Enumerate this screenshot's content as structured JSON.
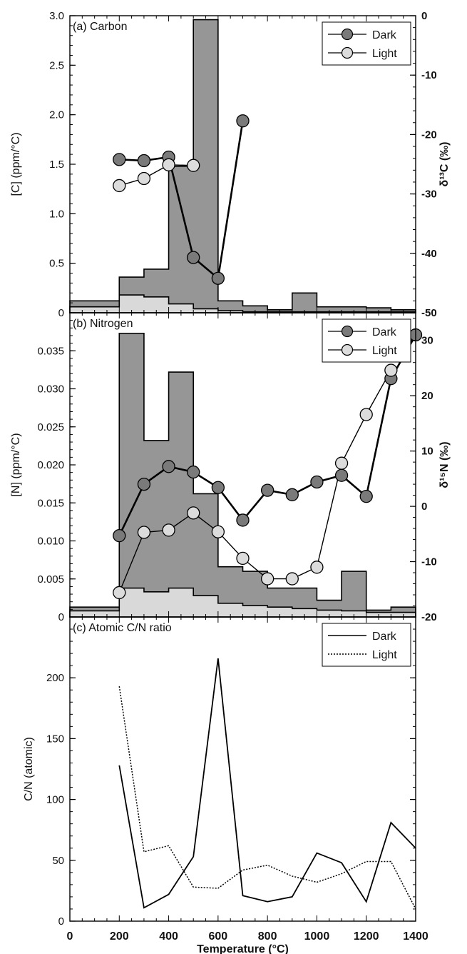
{
  "chart_data": [
    {
      "type": "bar",
      "panel_label": "(a) Carbon",
      "ylabel": "[C] (ppm/°C)",
      "y2label_html": "δ¹³C (‰)",
      "ylim": [
        0,
        3.0
      ],
      "yticks": [
        "0",
        "0.5",
        "1.0",
        "1.5",
        "2.0",
        "2.5",
        "3.0"
      ],
      "y2lim": [
        -50,
        0
      ],
      "y2ticks": [
        "-50",
        "-40",
        "-30",
        "-20",
        "-10",
        "0"
      ],
      "xlim": [
        0,
        1400
      ],
      "bins": [
        0,
        200,
        300,
        400,
        500,
        600,
        700,
        800,
        900,
        1000,
        1100,
        1200,
        1300,
        1400
      ],
      "bar_series": [
        {
          "name": "Dark",
          "values": [
            0.12,
            0.36,
            0.44,
            1.48,
            2.96,
            0.12,
            0.07,
            0.03,
            0.2,
            0.06,
            0.06,
            0.05,
            0.03
          ]
        },
        {
          "name": "Light",
          "values": [
            0.06,
            0.18,
            0.16,
            0.09,
            0.04,
            0.02,
            0.01,
            0.01,
            0.01,
            0.01,
            0.01,
            0.01,
            0.01
          ]
        }
      ],
      "line_series": [
        {
          "name": "Dark",
          "x": [
            200,
            300,
            400,
            500,
            600,
            700
          ],
          "y": [
            -24.2,
            -24.4,
            -23.8,
            -40.7,
            -44.2,
            -17.7
          ]
        },
        {
          "name": "Light",
          "x": [
            200,
            300,
            400,
            500
          ],
          "y": [
            -28.6,
            -27.4,
            -25.1,
            -25.2
          ]
        }
      ],
      "legend": [
        "Dark",
        "Light"
      ],
      "legend_position": "top-right"
    },
    {
      "type": "bar",
      "panel_label": "(b) Nitrogen",
      "ylabel": "[N] (ppm/°C)",
      "y2label_html": "δ¹⁵N (‰)",
      "ylim": [
        0,
        0.04
      ],
      "yticks": [
        "0",
        "0.005",
        "0.010",
        "0.015",
        "0.020",
        "0.025",
        "0.030",
        "0.035"
      ],
      "y2lim": [
        -20,
        35
      ],
      "y2ticks": [
        "-20",
        "-10",
        "0",
        "10",
        "20",
        "30"
      ],
      "xlim": [
        0,
        1400
      ],
      "bins": [
        0,
        200,
        300,
        400,
        500,
        600,
        700,
        800,
        900,
        1000,
        1100,
        1200,
        1300,
        1400
      ],
      "bar_series": [
        {
          "name": "Dark",
          "values": [
            0.0013,
            0.0373,
            0.0232,
            0.0322,
            0.0162,
            0.0066,
            0.006,
            0.0038,
            0.0038,
            0.0022,
            0.006,
            0.0009,
            0.0013
          ]
        },
        {
          "name": "Light",
          "values": [
            0.0008,
            0.0038,
            0.0033,
            0.0038,
            0.0028,
            0.0018,
            0.0015,
            0.0013,
            0.0011,
            0.0009,
            0.0008,
            0.0006,
            0.0006
          ]
        }
      ],
      "line_series": [
        {
          "name": "Dark",
          "x": [
            200,
            300,
            400,
            500,
            600,
            700,
            800,
            900,
            1000,
            1100,
            1200,
            1300,
            1400
          ],
          "y": [
            -5.3,
            4,
            7.2,
            6.2,
            3.4,
            -2.5,
            2.9,
            2.1,
            4.4,
            5.6,
            1.8,
            23.1,
            31
          ]
        },
        {
          "name": "Light",
          "x": [
            200,
            300,
            400,
            500,
            600,
            700,
            800,
            900,
            1000,
            1100,
            1200,
            1300
          ],
          "y": [
            -15.6,
            -4.7,
            -4.3,
            -1.2,
            -4.6,
            -9.4,
            -13.1,
            -13.1,
            -11,
            7.8,
            16.6,
            24.6
          ]
        }
      ],
      "legend": [
        "Dark",
        "Light"
      ],
      "legend_position": "top-right"
    },
    {
      "type": "line",
      "panel_label": "(c) Atomic C/N ratio",
      "ylabel": "C/N (atomic)",
      "xlabel": "Temperature (°C)",
      "ylim": [
        0,
        250
      ],
      "yticks": [
        "0",
        "50",
        "100",
        "150",
        "200"
      ],
      "xlim": [
        0,
        1400
      ],
      "xticks": [
        "0",
        "200",
        "400",
        "600",
        "800",
        "1000",
        "1200",
        "1400"
      ],
      "series": [
        {
          "name": "Dark",
          "x": [
            200,
            300,
            400,
            500,
            600,
            700,
            800,
            900,
            1000,
            1100,
            1200,
            1300,
            1400
          ],
          "y": [
            128,
            11,
            22,
            53,
            216,
            21,
            16,
            20,
            56,
            48,
            16,
            81,
            60
          ]
        },
        {
          "name": "Light",
          "x": [
            200,
            300,
            400,
            500,
            600,
            700,
            800,
            900,
            1000,
            1100,
            1200,
            1300,
            1400
          ],
          "y": [
            193,
            57,
            62,
            28,
            27,
            42,
            46,
            37,
            32,
            39,
            49,
            49,
            10
          ]
        }
      ],
      "legend": [
        "Dark",
        "Light"
      ],
      "legend_position": "top-right"
    }
  ],
  "colors": {
    "dark_bar": "#969696",
    "light_bar": "#d9d9d9",
    "dark_marker": "#7a7a7a",
    "light_marker": "#dcdcdc",
    "line": "#000000"
  }
}
